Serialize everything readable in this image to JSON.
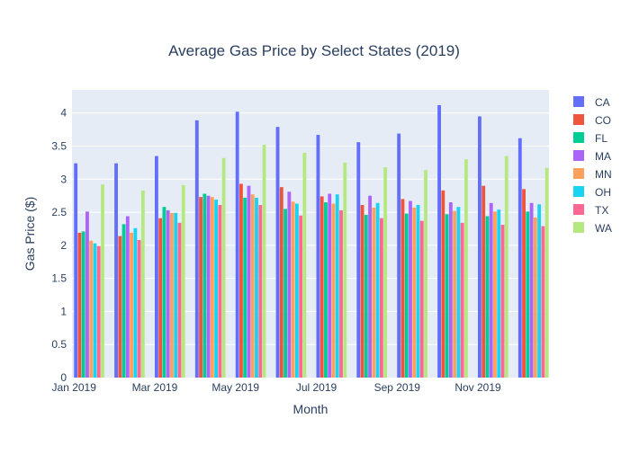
{
  "chart_data": {
    "type": "bar",
    "title": "Average Gas Price by Select States (2019)",
    "xlabel": "Month",
    "ylabel": "Gas Price ($)",
    "ylim": [
      0,
      4.35
    ],
    "yticks": [
      "0",
      "0.5",
      "1",
      "1.5",
      "2",
      "2.5",
      "3",
      "3.5",
      "4"
    ],
    "ytick_values": [
      0,
      0.5,
      1,
      1.5,
      2,
      2.5,
      3,
      3.5,
      4
    ],
    "xtick_labels": [
      "Jan 2019",
      "Mar 2019",
      "May 2019",
      "Jul 2019",
      "Sep 2019",
      "Nov 2019"
    ],
    "xtick_month_index": [
      0,
      2,
      4,
      6,
      8,
      10
    ],
    "categories": [
      "2019-01",
      "2019-02",
      "2019-03",
      "2019-04",
      "2019-05",
      "2019-06",
      "2019-07",
      "2019-08",
      "2019-09",
      "2019-10",
      "2019-11",
      "2019-12"
    ],
    "legend_position": "top-right",
    "grid": true,
    "plot_background": "#e5ecf6",
    "series": [
      {
        "name": "CA",
        "color": "#636efa",
        "values": [
          3.24,
          3.24,
          3.35,
          3.89,
          4.02,
          3.79,
          3.67,
          3.56,
          3.69,
          4.12,
          3.95,
          3.62
        ]
      },
      {
        "name": "CO",
        "color": "#ef553b",
        "values": [
          2.19,
          2.14,
          2.41,
          2.73,
          2.93,
          2.88,
          2.74,
          2.61,
          2.7,
          2.83,
          2.9,
          2.85
        ]
      },
      {
        "name": "FL",
        "color": "#00cc96",
        "values": [
          2.21,
          2.32,
          2.58,
          2.78,
          2.72,
          2.55,
          2.65,
          2.46,
          2.48,
          2.47,
          2.44,
          2.51
        ]
      },
      {
        "name": "MA",
        "color": "#ab63fa",
        "values": [
          2.51,
          2.44,
          2.53,
          2.75,
          2.9,
          2.81,
          2.78,
          2.75,
          2.67,
          2.65,
          2.64,
          2.64
        ]
      },
      {
        "name": "MN",
        "color": "#ffa15a",
        "values": [
          2.07,
          2.19,
          2.49,
          2.73,
          2.77,
          2.66,
          2.63,
          2.57,
          2.57,
          2.52,
          2.51,
          2.42
        ]
      },
      {
        "name": "OH",
        "color": "#19d3f3",
        "values": [
          2.03,
          2.26,
          2.49,
          2.69,
          2.72,
          2.63,
          2.77,
          2.64,
          2.61,
          2.58,
          2.54,
          2.62
        ]
      },
      {
        "name": "TX",
        "color": "#ff6692",
        "values": [
          1.99,
          2.08,
          2.34,
          2.61,
          2.61,
          2.45,
          2.53,
          2.41,
          2.37,
          2.34,
          2.31,
          2.29
        ]
      },
      {
        "name": "WA",
        "color": "#b6e880",
        "values": [
          2.92,
          2.83,
          2.91,
          3.32,
          3.52,
          3.4,
          3.25,
          3.18,
          3.14,
          3.3,
          3.35,
          3.17
        ]
      }
    ]
  }
}
